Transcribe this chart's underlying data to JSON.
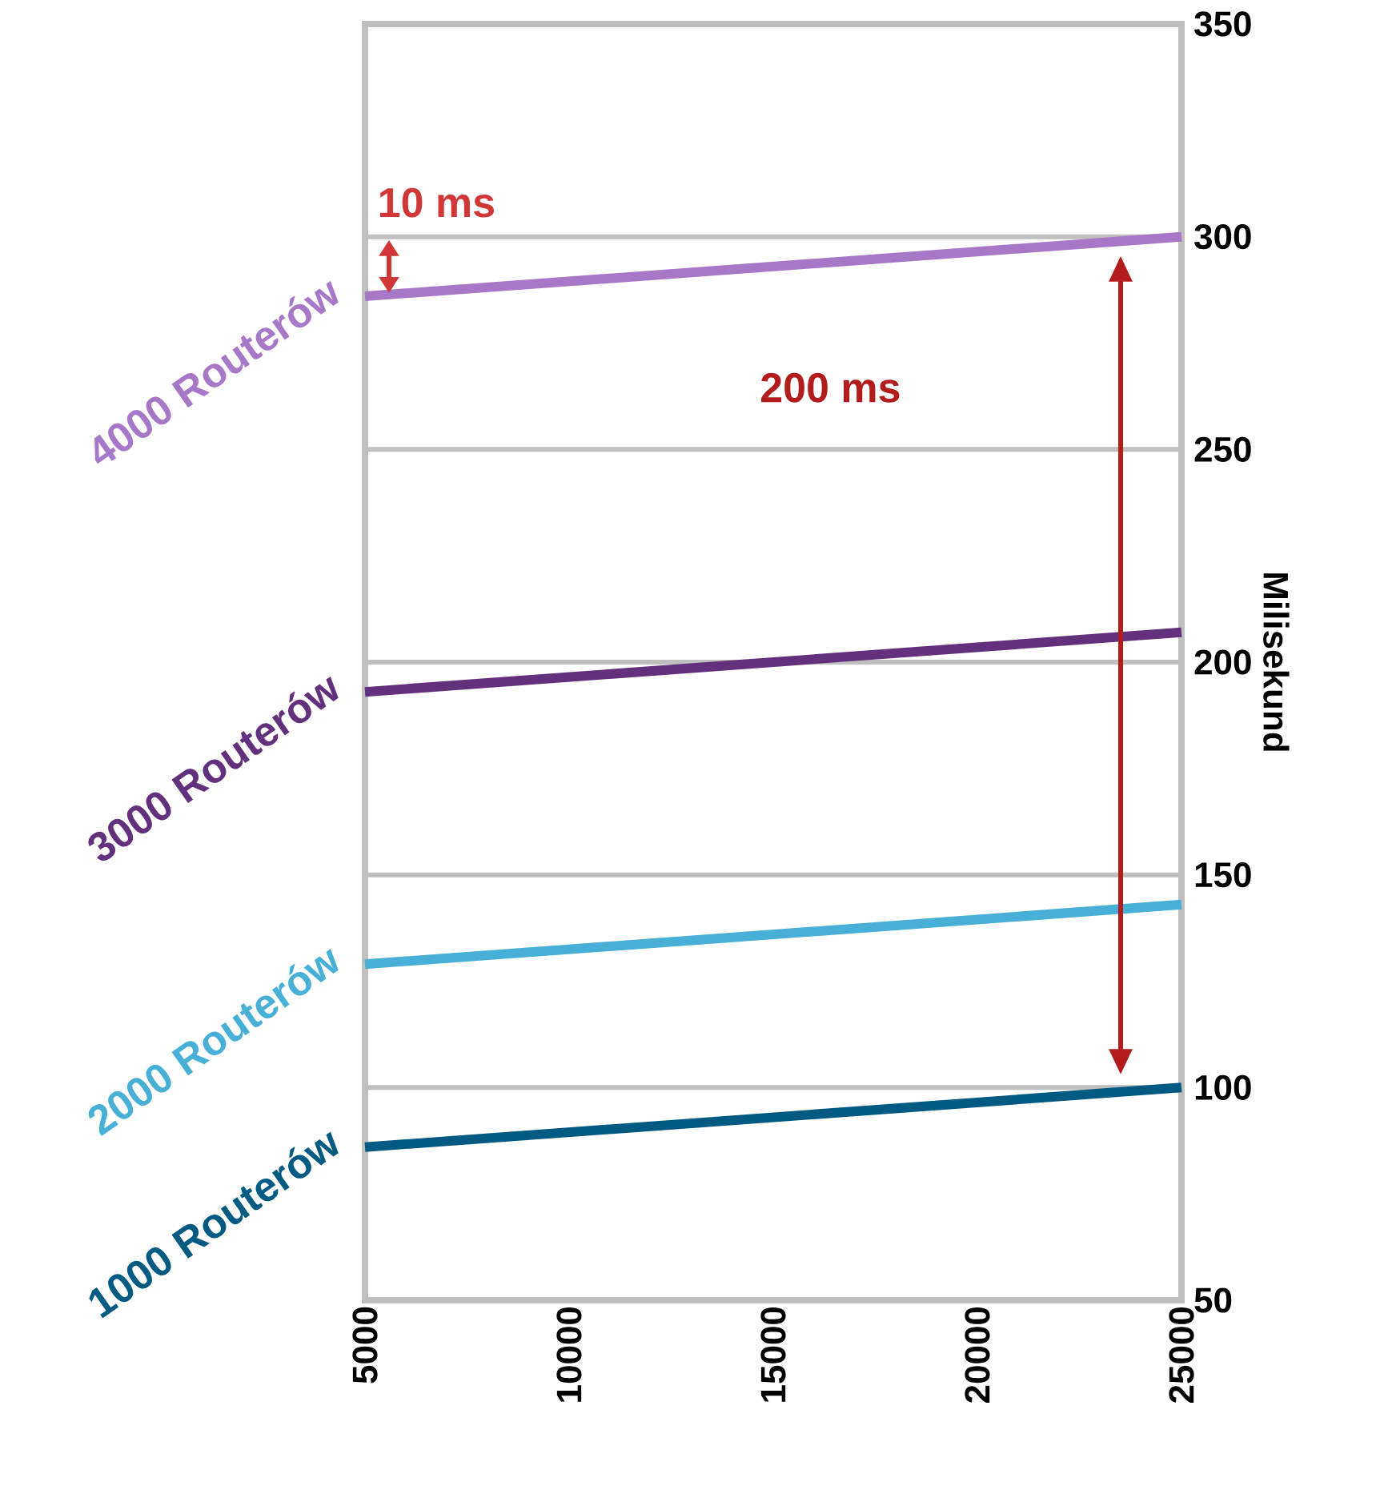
{
  "chart_data": {
    "type": "line",
    "ylabel": "Milisekund",
    "x": [
      5000,
      25000
    ],
    "series": [
      {
        "name": "1000 Routerów",
        "color": "#005a82",
        "values": [
          86,
          100
        ]
      },
      {
        "name": "2000 Routerów",
        "color": "#48afd6",
        "values": [
          129,
          143
        ]
      },
      {
        "name": "3000 Routerów",
        "color": "#63307d",
        "values": [
          193,
          207
        ]
      },
      {
        "name": "4000 Routerów",
        "color": "#a878c8",
        "values": [
          286,
          300
        ]
      }
    ],
    "xlim": [
      5000,
      25000
    ],
    "ylim": [
      50,
      350
    ],
    "xticks": [
      5000,
      10000,
      15000,
      20000,
      25000
    ],
    "yticks": [
      50,
      100,
      150,
      200,
      250,
      300,
      350
    ],
    "grid": "y",
    "legend": false,
    "marker": "none",
    "line_style": "solid",
    "annotations": [
      "10 ms",
      "200 ms"
    ]
  }
}
